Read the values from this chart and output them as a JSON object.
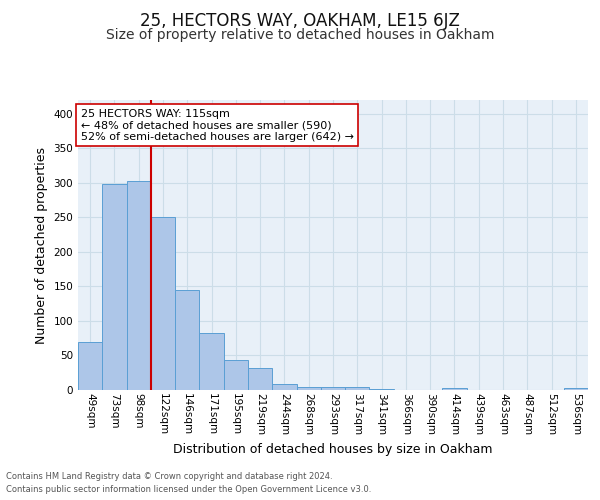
{
  "title": "25, HECTORS WAY, OAKHAM, LE15 6JZ",
  "subtitle": "Size of property relative to detached houses in Oakham",
  "xlabel": "Distribution of detached houses by size in Oakham",
  "ylabel": "Number of detached properties",
  "footnote1": "Contains HM Land Registry data © Crown copyright and database right 2024.",
  "footnote2": "Contains public sector information licensed under the Open Government Licence v3.0.",
  "bar_labels": [
    "49sqm",
    "73sqm",
    "98sqm",
    "122sqm",
    "146sqm",
    "171sqm",
    "195sqm",
    "219sqm",
    "244sqm",
    "268sqm",
    "293sqm",
    "317sqm",
    "341sqm",
    "366sqm",
    "390sqm",
    "414sqm",
    "439sqm",
    "463sqm",
    "487sqm",
    "512sqm",
    "536sqm"
  ],
  "bar_values": [
    70,
    298,
    303,
    250,
    145,
    82,
    44,
    32,
    8,
    5,
    5,
    5,
    2,
    0,
    0,
    3,
    0,
    0,
    0,
    0,
    3
  ],
  "bar_color": "#adc6e8",
  "bar_edge_color": "#5a9fd4",
  "vline_x": 2.5,
  "vline_color": "#cc0000",
  "annotation_line1": "25 HECTORS WAY: 115sqm",
  "annotation_line2": "← 48% of detached houses are smaller (590)",
  "annotation_line3": "52% of semi-detached houses are larger (642) →",
  "annotation_box_color": "#ffffff",
  "annotation_box_edge": "#cc0000",
  "ylim": [
    0,
    420
  ],
  "yticks": [
    0,
    50,
    100,
    150,
    200,
    250,
    300,
    350,
    400
  ],
  "grid_color": "#ccdde8",
  "bg_color": "#e8f0f8",
  "title_fontsize": 12,
  "subtitle_fontsize": 10,
  "xlabel_fontsize": 9,
  "ylabel_fontsize": 9,
  "annot_fontsize": 8,
  "tick_fontsize": 7.5,
  "footnote_fontsize": 6
}
